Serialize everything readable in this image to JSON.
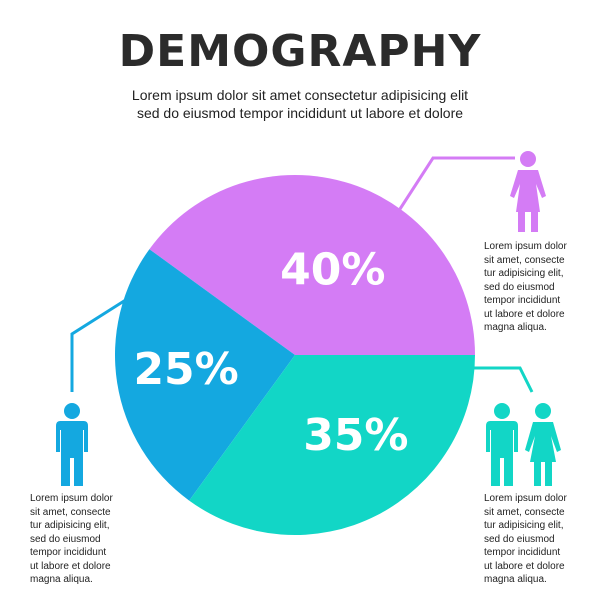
{
  "title": "DEMOGRAPHY",
  "subtitle": [
    "Lorem ipsum dolor sit amet consectetur adipisicing elit",
    "sed do eiusmod tempor incididunt ut labore et dolore"
  ],
  "colors": {
    "female": "#d47cf5",
    "couple": "#12d6c6",
    "male": "#14a8e0",
    "line_female": "#d47cf5",
    "line_couple": "#12d6c6",
    "line_male": "#14a8e0"
  },
  "chart_data": {
    "type": "pie",
    "slices": [
      {
        "label": "40%",
        "value": 40,
        "color": "#d47cf5"
      },
      {
        "label": "35%",
        "value": 35,
        "color": "#12d6c6"
      },
      {
        "label": "25%",
        "value": 25,
        "color": "#14a8e0"
      }
    ],
    "title": "DEMOGRAPHY"
  },
  "descriptions": {
    "female": [
      "Lorem ipsum dolor",
      "sit amet, consecte",
      "tur adipisicing elit,",
      "sed do eiusmod",
      "tempor incididunt",
      "ut labore et dolore",
      "magna aliqua."
    ],
    "couple": [
      "Lorem ipsum dolor",
      "sit amet, consecte",
      "tur adipisicing elit,",
      "sed do eiusmod",
      "tempor incididunt",
      "ut labore et dolore",
      "magna aliqua."
    ],
    "male": [
      "Lorem ipsum dolor",
      "sit amet, consecte",
      "tur adipisicing elit,",
      "sed do eiusmod",
      "tempor incididunt",
      "ut labore et dolore",
      "magna aliqua."
    ]
  },
  "icons": {
    "female": "woman-icon",
    "couple": "couple-icon",
    "male": "man-icon"
  }
}
